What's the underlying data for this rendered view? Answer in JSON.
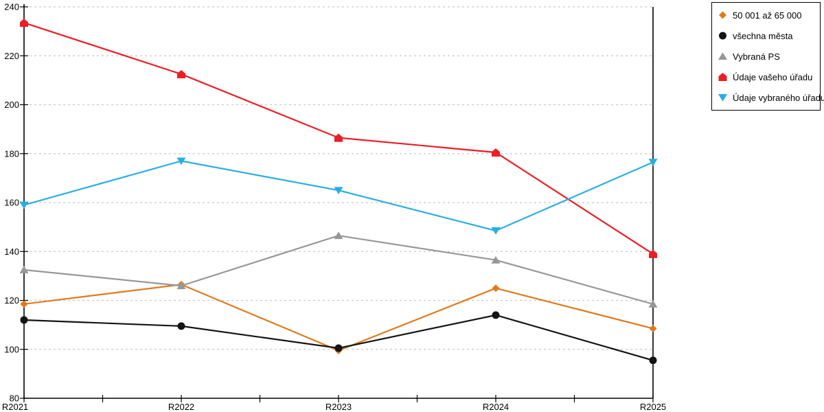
{
  "chart_data": {
    "type": "line",
    "title": "",
    "xlabel": "",
    "ylabel": "",
    "categories": [
      "R2021",
      "R2022",
      "R2023",
      "R2024",
      "R2025"
    ],
    "series": [
      {
        "name": "50 001 až 65 000",
        "marker": "diamond",
        "color": "#DF7A1C",
        "values": [
          118.5,
          126.5,
          99.5,
          125,
          108.5
        ]
      },
      {
        "name": "všechna města",
        "marker": "circle",
        "color": "#141414",
        "values": [
          112,
          109.5,
          100.5,
          114,
          95.5
        ]
      },
      {
        "name": "Vybraná PS",
        "marker": "triangle-up",
        "color": "#979797",
        "values": [
          132.5,
          126,
          146.5,
          136.5,
          118.5
        ]
      },
      {
        "name": "Údaje vašeho úřadu",
        "marker": "pentagon",
        "color": "#EC1D24",
        "values": [
          233.5,
          212.5,
          186.5,
          180.5,
          139
        ]
      },
      {
        "name": "Údaje vybraného úřadu",
        "marker": "triangle-down",
        "color": "#29ADE3",
        "values": [
          159,
          177,
          165,
          148.5,
          176.5
        ]
      }
    ],
    "ylim": [
      80,
      240
    ],
    "ytick_step": 20,
    "y_tick_labels": [
      "80",
      "100",
      "120",
      "140",
      "160",
      "180",
      "200",
      "220",
      "240"
    ],
    "grid": "horizontal-dashed",
    "legend_position": "top-right-outside"
  },
  "colors": {
    "axis": "#000000",
    "grid": "#c8c8c8",
    "background": "#ffffff",
    "legend_border": "#000000",
    "tick_text": "#000000"
  }
}
